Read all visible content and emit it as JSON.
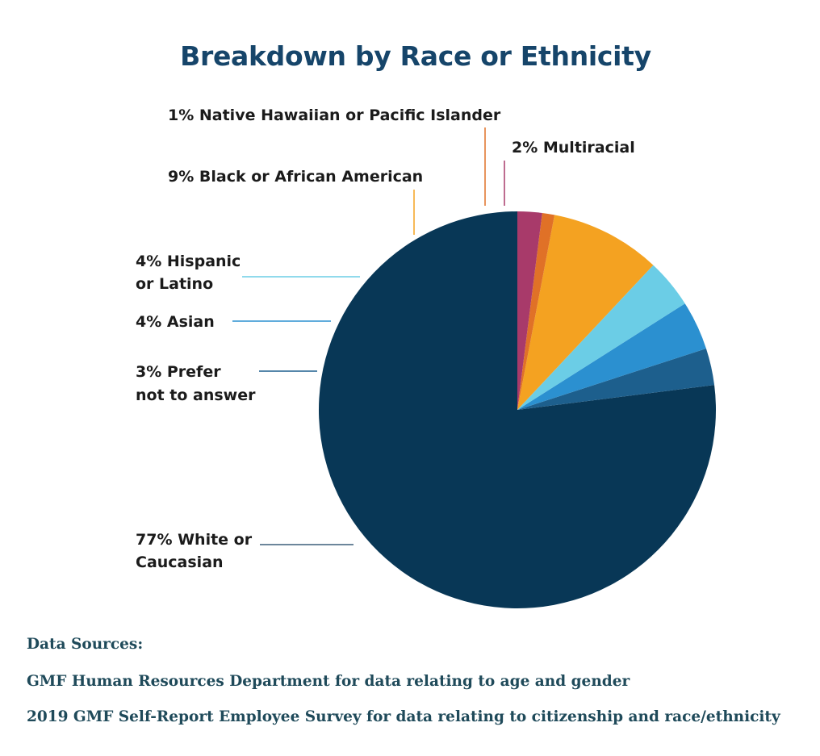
{
  "chart_data": {
    "type": "pie",
    "title": "Breakdown by Race or Ethnicity",
    "slices": [
      {
        "key": "white",
        "value": 77,
        "color": "#083756",
        "label_lines": [
          "77% White or",
          "Caucasian"
        ]
      },
      {
        "key": "prefer",
        "value": 3,
        "color": "#1d5f8d",
        "label_lines": [
          "3% Prefer",
          "not to answer"
        ]
      },
      {
        "key": "asian",
        "value": 4,
        "color": "#2b90d0",
        "label_lines": [
          "4% Asian"
        ]
      },
      {
        "key": "hispanic",
        "value": 4,
        "color": "#6bcde6",
        "label_lines": [
          "4% Hispanic",
          "or Latino"
        ]
      },
      {
        "key": "black",
        "value": 9,
        "color": "#f4a221",
        "label_lines": [
          "9% Black or African American"
        ]
      },
      {
        "key": "nhpi",
        "value": 1,
        "color": "#e07127",
        "label_lines": [
          "1% Native Hawaiian or Pacific Islander"
        ]
      },
      {
        "key": "multi",
        "value": 2,
        "color": "#a83a6a",
        "label_lines": [
          "2% Multiracial"
        ]
      }
    ]
  },
  "sources": {
    "heading": "Data Sources:",
    "line1": "GMF Human Resources Department for data relating to age and gender",
    "line2": "2019 GMF Self-Report Employee Survey for data relating to citizenship and race/ethnicity"
  }
}
